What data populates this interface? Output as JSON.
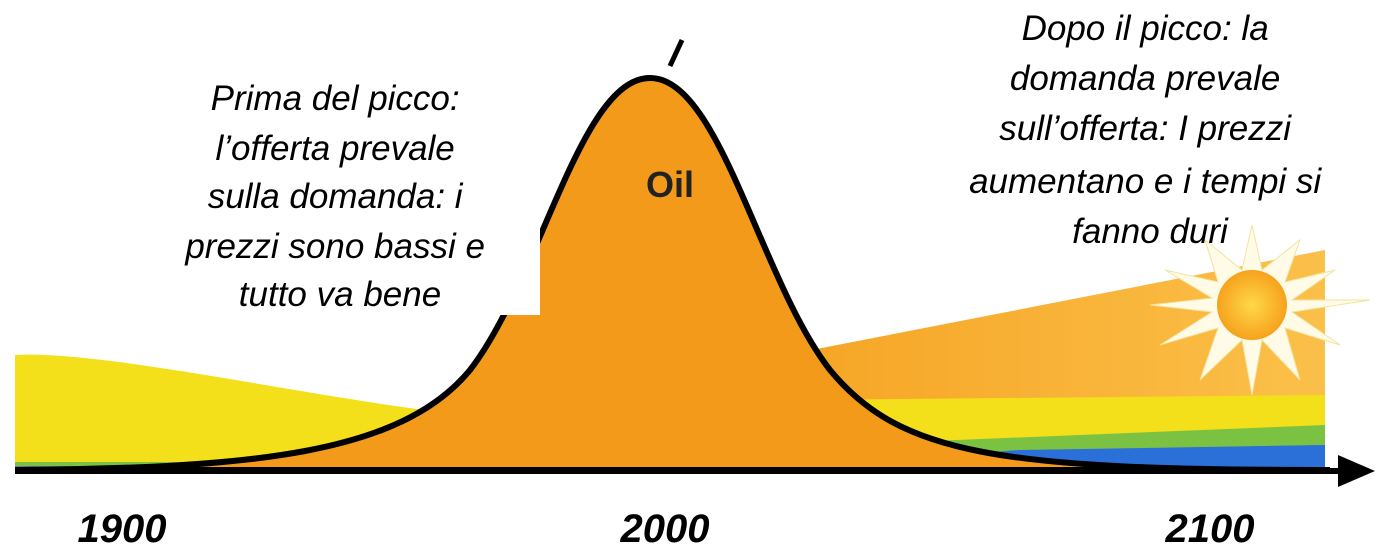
{
  "before_peak": {
    "lines": [
      "Prima del picco:",
      "l’offerta prevale",
      "sulla domanda: i",
      "prezzi sono bassi e",
      "tutto va bene"
    ]
  },
  "after_peak": {
    "lines": [
      "Dopo il picco: la",
      "domanda prevale",
      "sull’offerta: I prezzi",
      "aumentano e i tempi si",
      "fanno duri"
    ]
  },
  "curve_label": "Oil",
  "axis_labels": [
    "1900",
    "2000",
    "2100"
  ]
}
